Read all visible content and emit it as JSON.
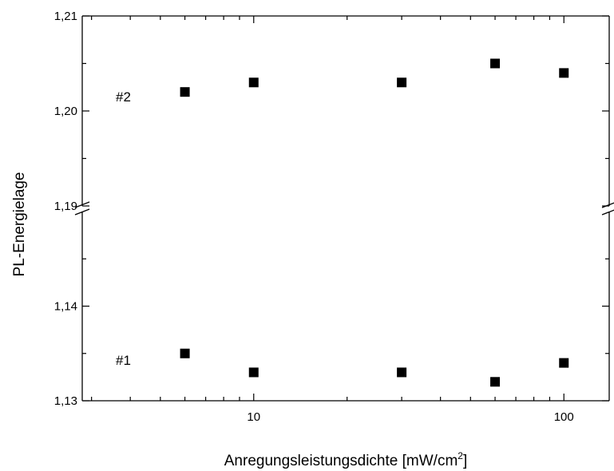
{
  "chart_data": {
    "type": "scatter",
    "xlabel": "Anregungsleistungsdichte [mW/cm",
    "xlabel_superscript": "2",
    "xlabel_suffix": "]",
    "ylabel": "PL-Energielage",
    "x_scale": "log",
    "xlim": [
      2.8,
      140
    ],
    "y_axis_break": true,
    "ylim_upper_segment": [
      1.19,
      1.21
    ],
    "ylim_lower_segment": [
      1.13,
      1.15
    ],
    "x_ticks_major": [
      10,
      100
    ],
    "x_tick_labels": [
      "10",
      "100"
    ],
    "y_ticks": [
      1.13,
      1.14,
      1.19,
      1.2,
      1.21
    ],
    "y_tick_labels": [
      "1,13",
      "1,14",
      "1,19",
      "1,20",
      "1,21"
    ],
    "marker": "square",
    "marker_color": "#000000",
    "series": [
      {
        "x": [
          6,
          10,
          30,
          60,
          100
        ],
        "y": [
          1.202,
          1.203,
          1.203,
          1.205,
          1.204
        ]
      },
      {
        "x": [
          6,
          10,
          30,
          60,
          100
        ],
        "y": [
          1.135,
          1.133,
          1.133,
          1.132,
          1.134
        ]
      }
    ],
    "annotations": [
      "#2",
      "#1"
    ]
  }
}
